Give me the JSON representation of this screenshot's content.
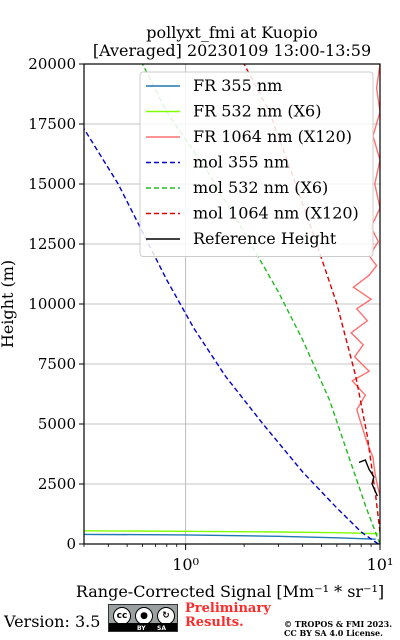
{
  "title_line1": "pollyxt_fmi at Kuopio",
  "title_line2": "[Averaged] 20230109 13:00-13:59",
  "footer": {
    "version": "Version: 3.5",
    "preliminary": "Preliminary Results.",
    "copyright_line1": "© TROPOS & FMI 2023.",
    "copyright_line2": "CC BY SA 4.0 License.",
    "license_badge": [
      "cc",
      "BY",
      "SA"
    ],
    "colors": {
      "preliminary": "#ff2a2a"
    }
  },
  "chart_data": {
    "type": "line",
    "xlabel": "Range-Corrected Signal [Mm⁻¹ * sr⁻¹]",
    "ylabel": "Height (m)",
    "x_scale": "log",
    "xlim": [
      0.3,
      10
    ],
    "ylim": [
      0,
      20000
    ],
    "grid": true,
    "legend_position": "top-right",
    "x_tick_labels": [
      "10⁰",
      "10¹"
    ],
    "y_tick_labels": [
      "0",
      "2500",
      "5000",
      "7500",
      "10000",
      "12500",
      "15000",
      "17500",
      "20000"
    ],
    "y_ticks": [
      0,
      2500,
      5000,
      7500,
      10000,
      12500,
      15000,
      17500,
      20000
    ],
    "series": [
      {
        "name": "FR 355 nm",
        "color": "#1f77b4",
        "style": "solid",
        "points": [
          [
            0.3,
            400
          ],
          [
            1,
            380
          ],
          [
            3,
            320
          ],
          [
            6,
            260
          ],
          [
            9.5,
            200
          ]
        ]
      },
      {
        "name": "FR 532 nm (X6)",
        "color": "#7fff00",
        "style": "solid",
        "points": [
          [
            0.3,
            550
          ],
          [
            1,
            530
          ],
          [
            3,
            500
          ],
          [
            6,
            470
          ],
          [
            9.8,
            430
          ]
        ]
      },
      {
        "name": "FR 1064 nm (X120)",
        "color": "#ff7070",
        "style": "solid",
        "points": [
          [
            10,
            2000
          ],
          [
            9.6,
            2600
          ],
          [
            9.4,
            3000
          ],
          [
            9.2,
            3600
          ],
          [
            8.6,
            4200
          ],
          [
            8.0,
            5000
          ],
          [
            7.6,
            5600
          ],
          [
            8.4,
            6200
          ],
          [
            7.2,
            6800
          ],
          [
            8.8,
            7200
          ],
          [
            7.4,
            7800
          ],
          [
            8.2,
            8300
          ],
          [
            7.1,
            8800
          ],
          [
            8.6,
            9300
          ],
          [
            7.6,
            9800
          ],
          [
            9.0,
            10200
          ],
          [
            7.3,
            10700
          ],
          [
            8.8,
            11200
          ],
          [
            9.6,
            11600
          ],
          [
            8.8,
            12000
          ],
          [
            9.8,
            12600
          ],
          [
            9.0,
            13200
          ],
          [
            10,
            14000
          ],
          [
            9.4,
            15000
          ],
          [
            10,
            16000
          ],
          [
            9.2,
            17000
          ],
          [
            10,
            18000
          ],
          [
            9.6,
            19000
          ],
          [
            10,
            20000
          ]
        ]
      },
      {
        "name": "mol 355 nm",
        "color": "#0000cc",
        "style": "dashed",
        "points": [
          [
            9.8,
            0
          ],
          [
            8.0,
            500
          ],
          [
            6.0,
            1500
          ],
          [
            4.0,
            3000
          ],
          [
            2.5,
            5000
          ],
          [
            1.6,
            7000
          ],
          [
            1.1,
            9000
          ],
          [
            0.8,
            11000
          ],
          [
            0.6,
            13000
          ],
          [
            0.45,
            15000
          ],
          [
            0.3,
            17300
          ]
        ]
      },
      {
        "name": "mol 532 nm (X6)",
        "color": "#22bb22",
        "style": "dashed",
        "points": [
          [
            10,
            0
          ],
          [
            8.5,
            1500
          ],
          [
            7.0,
            3500
          ],
          [
            5.5,
            6000
          ],
          [
            4.0,
            8500
          ],
          [
            3.0,
            10500
          ],
          [
            2.0,
            13000
          ],
          [
            1.3,
            15500
          ],
          [
            0.8,
            18000
          ],
          [
            0.6,
            20000
          ]
        ]
      },
      {
        "name": "mol 1064 nm (X120)",
        "color": "#dd0000",
        "style": "dashed",
        "points": [
          [
            10,
            500
          ],
          [
            9.5,
            2000
          ],
          [
            8.6,
            4500
          ],
          [
            7.5,
            7000
          ],
          [
            6.0,
            10000
          ],
          [
            4.5,
            13000
          ],
          [
            3.5,
            15500
          ],
          [
            2.7,
            18000
          ],
          [
            2.0,
            20000
          ]
        ]
      },
      {
        "name": "Reference Height",
        "color": "#000000",
        "style": "solid",
        "points": [
          [
            9.7,
            2000
          ],
          [
            9.1,
            2500
          ],
          [
            9.3,
            2800
          ],
          [
            8.8,
            3100
          ],
          [
            8.4,
            3500
          ],
          [
            7.8,
            3400
          ]
        ]
      }
    ]
  }
}
